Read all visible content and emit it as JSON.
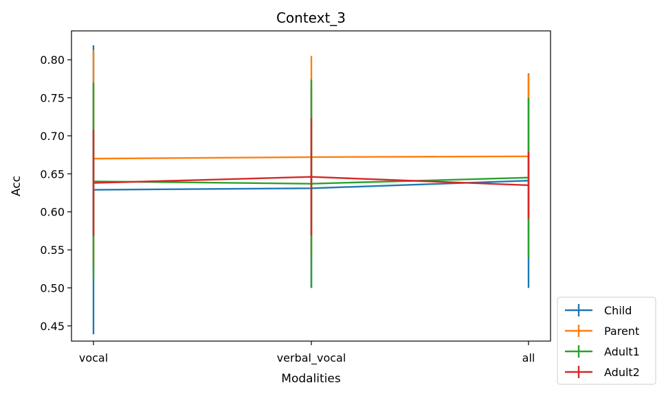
{
  "chart_data": {
    "type": "line",
    "title": "Context_3",
    "xlabel": "Modalities",
    "ylabel": "Acc",
    "categories": [
      "vocal",
      "verbal_vocal",
      "all"
    ],
    "ylim": [
      0.43,
      0.838
    ],
    "yticks": [
      "0.45",
      "0.50",
      "0.55",
      "0.60",
      "0.65",
      "0.70",
      "0.75",
      "0.80"
    ],
    "grid": false,
    "legend_position": "outside-lower-right",
    "series": [
      {
        "name": "Child",
        "color": "#1f77b4",
        "values": [
          0.629,
          0.631,
          0.641
        ],
        "yerr": [
          0.19,
          0.131,
          0.141
        ]
      },
      {
        "name": "Parent",
        "color": "#ff7f0e",
        "values": [
          0.67,
          0.672,
          0.673
        ],
        "yerr": [
          0.143,
          0.133,
          0.108
        ]
      },
      {
        "name": "Adult1",
        "color": "#2ca02c",
        "values": [
          0.64,
          0.637,
          0.645
        ],
        "yerr": [
          0.13,
          0.137,
          0.105
        ]
      },
      {
        "name": "Adult2",
        "color": "#d62728",
        "values": [
          0.638,
          0.646,
          0.635
        ],
        "yerr": [
          0.07,
          0.077,
          0.044
        ]
      }
    ]
  }
}
